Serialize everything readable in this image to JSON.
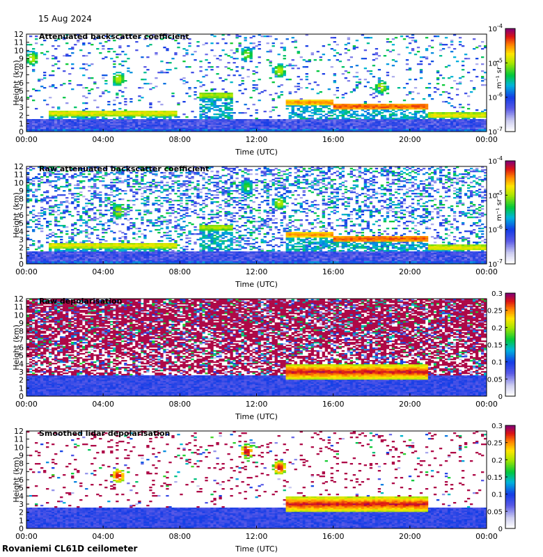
{
  "header": {
    "date": "15 Aug 2024"
  },
  "footer": {
    "site": "Rovaniemi CL61D ceilometer"
  },
  "chart_data": [
    {
      "type": "heatmap",
      "title": "Attenuated backscatter coefficient",
      "xlabel": "Time (UTC)",
      "ylabel": "Height (km)",
      "xlim": [
        0,
        24
      ],
      "ylim": [
        0,
        12
      ],
      "x_ticks": [
        "00:00",
        "04:00",
        "08:00",
        "12:00",
        "16:00",
        "20:00",
        "00:00"
      ],
      "y_ticks": [
        "0",
        "1",
        "2",
        "3",
        "4",
        "5",
        "6",
        "7",
        "8",
        "9",
        "10",
        "11",
        "12"
      ],
      "colorbar": {
        "scale": "log",
        "range": [
          1e-07,
          0.0001
        ],
        "unit_label": "m⁻¹ sr⁻¹",
        "ticks": [
          [
            "10",
            "-4"
          ],
          [
            "10",
            "-5"
          ],
          [
            "10",
            "-6"
          ],
          [
            "10",
            "-7"
          ]
        ]
      },
      "noise_level": 0.1,
      "boundary_layer_top_km": 1.6,
      "cloud_layers": [
        {
          "t0": 1.2,
          "t1": 7.8,
          "h": 2.3,
          "intensity": 0.75
        },
        {
          "t0": 9.0,
          "t1": 10.8,
          "h": 4.5,
          "intensity": 0.7
        },
        {
          "t0": 13.5,
          "t1": 16.0,
          "h": 3.6,
          "intensity": 0.85
        },
        {
          "t0": 16.0,
          "t1": 21.0,
          "h": 3.1,
          "intensity": 0.9
        },
        {
          "t0": 21.0,
          "t1": 24.0,
          "h": 2.0,
          "intensity": 0.75
        }
      ],
      "elevated_patches": [
        {
          "t": 0.3,
          "h": 9.0,
          "intensity": 0.7
        },
        {
          "t": 4.8,
          "h": 6.5,
          "intensity": 0.7
        },
        {
          "t": 11.5,
          "h": 9.5,
          "intensity": 0.65
        },
        {
          "t": 13.2,
          "h": 7.5,
          "intensity": 0.7
        },
        {
          "t": 18.5,
          "h": 5.5,
          "intensity": 0.7
        }
      ]
    },
    {
      "type": "heatmap",
      "title": "Raw attenuated backscatter coefficient",
      "xlabel": "Time (UTC)",
      "ylabel": "Height (km)",
      "xlim": [
        0,
        24
      ],
      "ylim": [
        0,
        12
      ],
      "x_ticks": [
        "00:00",
        "04:00",
        "08:00",
        "12:00",
        "16:00",
        "20:00",
        "00:00"
      ],
      "y_ticks": [
        "0",
        "1",
        "2",
        "3",
        "4",
        "5",
        "6",
        "7",
        "8",
        "9",
        "10",
        "11",
        "12"
      ],
      "colorbar": {
        "scale": "log",
        "range": [
          1e-07,
          0.0001
        ],
        "unit_label": "m⁻¹ sr⁻¹",
        "ticks": [
          [
            "10",
            "-4"
          ],
          [
            "10",
            "-5"
          ],
          [
            "10",
            "-6"
          ],
          [
            "10",
            "-7"
          ]
        ]
      },
      "noise_level": 0.35,
      "boundary_layer_top_km": 1.6,
      "cloud_layers": [
        {
          "t0": 1.2,
          "t1": 7.8,
          "h": 2.3,
          "intensity": 0.75
        },
        {
          "t0": 9.0,
          "t1": 10.8,
          "h": 4.5,
          "intensity": 0.7
        },
        {
          "t0": 13.5,
          "t1": 16.0,
          "h": 3.6,
          "intensity": 0.85
        },
        {
          "t0": 16.0,
          "t1": 21.0,
          "h": 3.1,
          "intensity": 0.9
        },
        {
          "t0": 21.0,
          "t1": 24.0,
          "h": 2.0,
          "intensity": 0.75
        }
      ],
      "elevated_patches": [
        {
          "t": 4.8,
          "h": 6.5,
          "intensity": 0.7
        },
        {
          "t": 13.2,
          "h": 7.5,
          "intensity": 0.7
        },
        {
          "t": 11.5,
          "h": 9.5,
          "intensity": 0.6
        }
      ]
    },
    {
      "type": "heatmap",
      "title": "Raw depolarisation",
      "xlabel": "Time (UTC)",
      "ylabel": "Height (km)",
      "xlim": [
        0,
        24
      ],
      "ylim": [
        0,
        12
      ],
      "x_ticks": [
        "00:00",
        "04:00",
        "08:00",
        "12:00",
        "16:00",
        "20:00",
        "00:00"
      ],
      "y_ticks": [
        "0",
        "1",
        "2",
        "3",
        "4",
        "5",
        "6",
        "7",
        "8",
        "9",
        "10",
        "11",
        "12"
      ],
      "colorbar": {
        "scale": "linear",
        "range": [
          0,
          0.3
        ],
        "ticks": [
          "0.3",
          "0.25",
          "0.2",
          "0.15",
          "0.1",
          "0.05",
          "0"
        ]
      },
      "noise_level": 0.8,
      "boundary_layer_top_km": 2.5,
      "cloud_layers": [
        {
          "t0": 13.5,
          "t1": 21.0,
          "h": 3.0,
          "intensity": 0.95
        }
      ],
      "elevated_patches": []
    },
    {
      "type": "heatmap",
      "title": "Smoothed lidar depolarisation",
      "xlabel": "Time (UTC)",
      "ylabel": "Height (km)",
      "xlim": [
        0,
        24
      ],
      "ylim": [
        0,
        12
      ],
      "x_ticks": [
        "00:00",
        "04:00",
        "08:00",
        "12:00",
        "16:00",
        "20:00",
        "00:00"
      ],
      "y_ticks": [
        "0",
        "1",
        "2",
        "3",
        "4",
        "5",
        "6",
        "7",
        "8",
        "9",
        "10",
        "11",
        "12"
      ],
      "colorbar": {
        "scale": "linear",
        "range": [
          0,
          0.3
        ],
        "ticks": [
          "0.3",
          "0.25",
          "0.2",
          "0.15",
          "0.1",
          "0.05",
          "0"
        ]
      },
      "noise_level": 0.08,
      "boundary_layer_top_km": 2.5,
      "cloud_layers": [
        {
          "t0": 13.5,
          "t1": 21.0,
          "h": 3.0,
          "intensity": 0.95
        }
      ],
      "elevated_patches": [
        {
          "t": 4.8,
          "h": 6.5,
          "intensity": 0.95
        },
        {
          "t": 11.5,
          "h": 9.5,
          "intensity": 0.95
        },
        {
          "t": 13.2,
          "h": 7.5,
          "intensity": 0.95
        }
      ]
    }
  ]
}
